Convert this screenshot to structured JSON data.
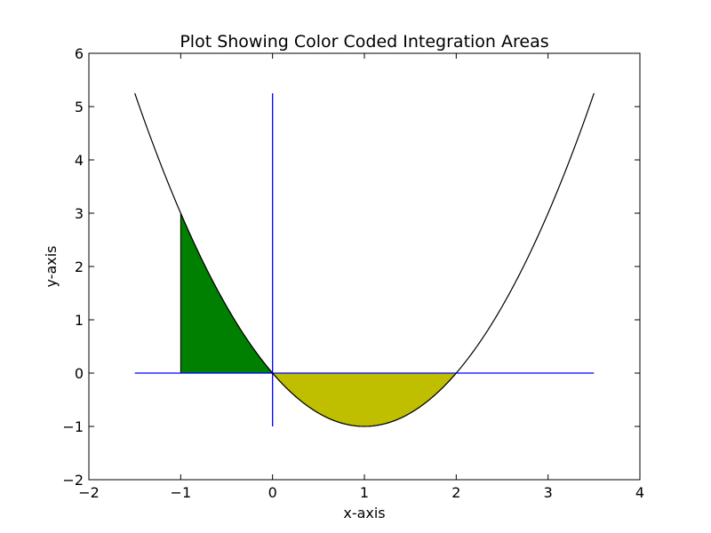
{
  "chart_data": {
    "type": "line",
    "title": "Plot Showing Color Coded Integration Areas",
    "xlabel": "x-axis",
    "ylabel": "y-axis",
    "xlim": [
      -2,
      4
    ],
    "ylim": [
      -2,
      6
    ],
    "xticks": [
      -2,
      -1,
      0,
      1,
      2,
      3,
      4
    ],
    "yticks": [
      -2,
      -1,
      0,
      1,
      2,
      3,
      4,
      5,
      6
    ],
    "xtick_labels": [
      "−2",
      "−1",
      "0",
      "1",
      "2",
      "3",
      "4"
    ],
    "ytick_labels": [
      "−2",
      "−1",
      "0",
      "1",
      "2",
      "3",
      "4",
      "5",
      "6"
    ],
    "grid": false,
    "legend": "none",
    "series": [
      {
        "function": "y = x^2 - 2x",
        "x_range": [
          -1.5,
          3.5
        ],
        "color": "#000000"
      }
    ],
    "reference_lines": [
      {
        "orientation": "horizontal",
        "y": 0,
        "x_range": [
          -1.5,
          3.5
        ],
        "color": "#0000ff"
      },
      {
        "orientation": "vertical",
        "x": 0,
        "y_range": [
          -1,
          5.25
        ],
        "color": "#0000ff"
      }
    ],
    "filled_regions": [
      {
        "x_range": [
          -1,
          0
        ],
        "between": [
          "curve",
          "y = 0"
        ],
        "color": "#008000"
      },
      {
        "x_range": [
          0,
          2
        ],
        "between": [
          "curve",
          "y = 0"
        ],
        "color": "#bfbf00"
      }
    ]
  }
}
